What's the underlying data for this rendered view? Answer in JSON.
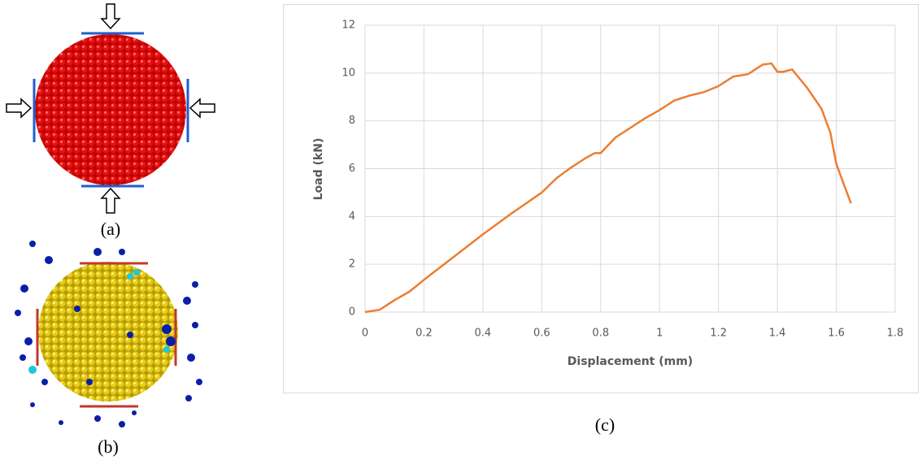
{
  "chart_data": {
    "type": "line",
    "x_label": "Displacement (mm)",
    "y_label": "Load (kN)",
    "x": [
      0,
      0.05,
      0.1,
      0.15,
      0.2,
      0.3,
      0.4,
      0.5,
      0.6,
      0.65,
      0.7,
      0.75,
      0.78,
      0.8,
      0.85,
      0.9,
      0.95,
      1.0,
      1.05,
      1.1,
      1.15,
      1.2,
      1.25,
      1.3,
      1.35,
      1.38,
      1.4,
      1.42,
      1.45,
      1.5,
      1.55,
      1.58,
      1.6,
      1.63,
      1.65
    ],
    "series": [
      {
        "color": "#ed7d31",
        "values": [
          0,
          0.1,
          0.5,
          0.85,
          1.35,
          2.3,
          3.25,
          4.15,
          5.0,
          5.6,
          6.05,
          6.45,
          6.65,
          6.65,
          7.3,
          7.7,
          8.1,
          8.45,
          8.85,
          9.05,
          9.2,
          9.45,
          9.85,
          9.95,
          10.35,
          10.4,
          10.05,
          10.05,
          10.15,
          9.4,
          8.5,
          7.5,
          6.2,
          5.2,
          4.55
        ]
      }
    ],
    "xlim": [
      0,
      1.8
    ],
    "xticks": [
      0,
      0.2,
      0.4,
      0.6,
      0.8,
      1,
      1.2,
      1.4,
      1.6,
      1.8
    ],
    "ylim": [
      0,
      12
    ],
    "yticks": [
      0,
      2,
      4,
      6,
      8,
      10,
      12
    ],
    "grid": true
  },
  "panels": {
    "a": "(a)",
    "b": "(b)",
    "c": "(c)"
  }
}
